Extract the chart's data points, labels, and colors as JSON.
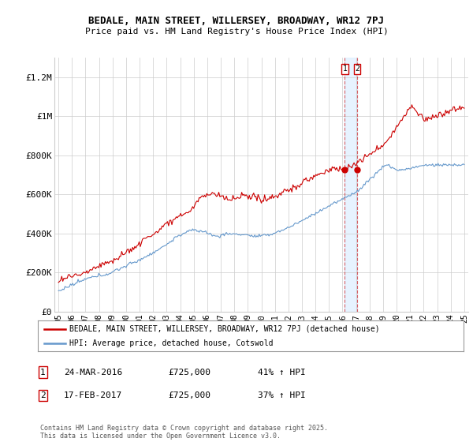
{
  "title": "BEDALE, MAIN STREET, WILLERSEY, BROADWAY, WR12 7PJ",
  "subtitle": "Price paid vs. HM Land Registry's House Price Index (HPI)",
  "ylim": [
    0,
    1300000
  ],
  "yticks": [
    0,
    200000,
    400000,
    600000,
    800000,
    1000000,
    1200000
  ],
  "ytick_labels": [
    "£0",
    "£200K",
    "£400K",
    "£600K",
    "£800K",
    "£1M",
    "£1.2M"
  ],
  "legend_entries": [
    "BEDALE, MAIN STREET, WILLERSEY, BROADWAY, WR12 7PJ (detached house)",
    "HPI: Average price, detached house, Cotswold"
  ],
  "property_color": "#cc0000",
  "hpi_color": "#6699cc",
  "sale1_date": "24-MAR-2016",
  "sale1_price": "£725,000",
  "sale1_hpi": "41% ↑ HPI",
  "sale2_date": "17-FEB-2017",
  "sale2_price": "£725,000",
  "sale2_hpi": "37% ↑ HPI",
  "footer": "Contains HM Land Registry data © Crown copyright and database right 2025.\nThis data is licensed under the Open Government Licence v3.0.",
  "background_color": "#ffffff",
  "grid_color": "#cccccc",
  "shade_color": "#ddeeff",
  "start_year": 1995,
  "end_year": 2025,
  "xtick_years": [
    "95",
    "96",
    "97",
    "98",
    "99",
    "00",
    "01",
    "02",
    "03",
    "04",
    "05",
    "06",
    "07",
    "08",
    "09",
    "10",
    "11",
    "12",
    "13",
    "14",
    "15",
    "16",
    "17",
    "18",
    "19",
    "20",
    "21",
    "22",
    "23",
    "24",
    "25"
  ]
}
